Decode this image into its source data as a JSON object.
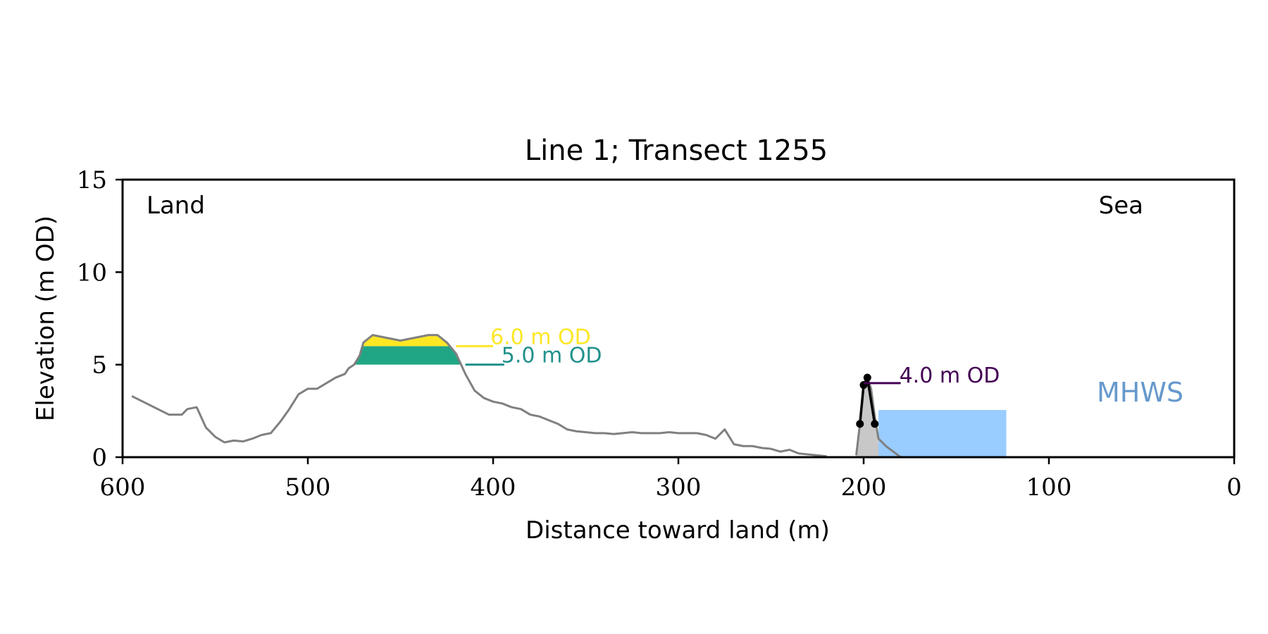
{
  "chart_data": {
    "type": "line",
    "title": "Line 1; Transect 1255",
    "xlabel": "Distance toward land (m)",
    "ylabel": "Elevation (m OD)",
    "xlim": [
      600,
      0
    ],
    "ylim": [
      0,
      15
    ],
    "x_ticks": [
      600,
      500,
      400,
      300,
      200,
      100,
      0
    ],
    "y_ticks": [
      0,
      5,
      10,
      15
    ],
    "grid": false,
    "corner_labels": {
      "left": "Land",
      "right": "Sea"
    },
    "profile": {
      "color": "#808080",
      "segment_land": {
        "x": [
          595,
          585,
          575,
          568,
          565,
          560,
          555,
          550,
          545,
          540,
          535,
          530,
          525,
          520,
          515,
          510,
          505,
          500,
          495,
          490,
          485,
          480,
          478,
          475,
          472,
          470,
          465,
          460,
          455,
          450,
          445,
          440,
          435,
          430,
          425,
          420,
          415,
          410,
          405,
          400,
          395,
          390,
          385,
          380,
          375,
          370,
          365,
          360,
          355,
          350,
          345,
          340,
          335,
          330,
          325,
          320,
          315,
          310,
          305,
          300,
          295,
          290,
          285,
          280,
          275,
          270,
          265,
          260,
          255,
          250,
          245,
          240,
          235,
          230,
          225,
          220
        ],
        "y": [
          3.3,
          2.8,
          2.3,
          2.3,
          2.6,
          2.7,
          1.6,
          1.1,
          0.8,
          0.9,
          0.85,
          1.0,
          1.2,
          1.3,
          1.9,
          2.6,
          3.4,
          3.7,
          3.7,
          4.0,
          4.3,
          4.5,
          4.8,
          5.0,
          5.5,
          6.2,
          6.6,
          6.5,
          6.4,
          6.3,
          6.4,
          6.5,
          6.6,
          6.6,
          6.2,
          5.6,
          4.5,
          3.6,
          3.2,
          3.0,
          2.9,
          2.7,
          2.6,
          2.3,
          2.2,
          2.0,
          1.8,
          1.5,
          1.4,
          1.35,
          1.3,
          1.3,
          1.25,
          1.3,
          1.35,
          1.3,
          1.3,
          1.3,
          1.35,
          1.3,
          1.3,
          1.3,
          1.2,
          1.0,
          1.5,
          0.7,
          0.6,
          0.6,
          0.5,
          0.45,
          0.3,
          0.4,
          0.2,
          0.15,
          0.1,
          0.05
        ]
      },
      "segment_sea": {
        "x": [
          204,
          202,
          200,
          198,
          196,
          194,
          192,
          188,
          184,
          180
        ],
        "y": [
          0.1,
          1.8,
          3.9,
          4.3,
          3.7,
          2.2,
          1.0,
          0.6,
          0.3,
          0.0
        ]
      }
    },
    "level_fills": [
      {
        "level": 6.0,
        "label": "6.0 m OD",
        "color": "#FDE725",
        "x_range": [
          474,
          416
        ]
      },
      {
        "level": 5.0,
        "label": "5.0 m OD",
        "color": "#21A685",
        "label_color": "#21918C",
        "x_range": [
          475,
          413
        ]
      }
    ],
    "level_markers": [
      {
        "level": 6.0,
        "x_range": [
          420,
          400
        ],
        "color": "#FDE725"
      },
      {
        "level": 5.0,
        "x_range": [
          415,
          394
        ],
        "color": "#21918C"
      }
    ],
    "structure": {
      "fill_color": "#C8C8C8",
      "line_color": "#000000",
      "points": [
        {
          "x": 202,
          "y": 1.8
        },
        {
          "x": 200,
          "y": 3.9
        },
        {
          "x": 198,
          "y": 4.3
        },
        {
          "x": 194,
          "y": 1.8
        }
      ],
      "crest_level": {
        "level": 4.0,
        "label": "4.0 m OD",
        "x_range": [
          200,
          180
        ],
        "color": "#440154"
      }
    },
    "mhws": {
      "label": "MHWS",
      "label_color": "#6699CC",
      "color": "#99CCFF",
      "x_range": [
        192,
        123
      ],
      "level": 2.55
    }
  }
}
